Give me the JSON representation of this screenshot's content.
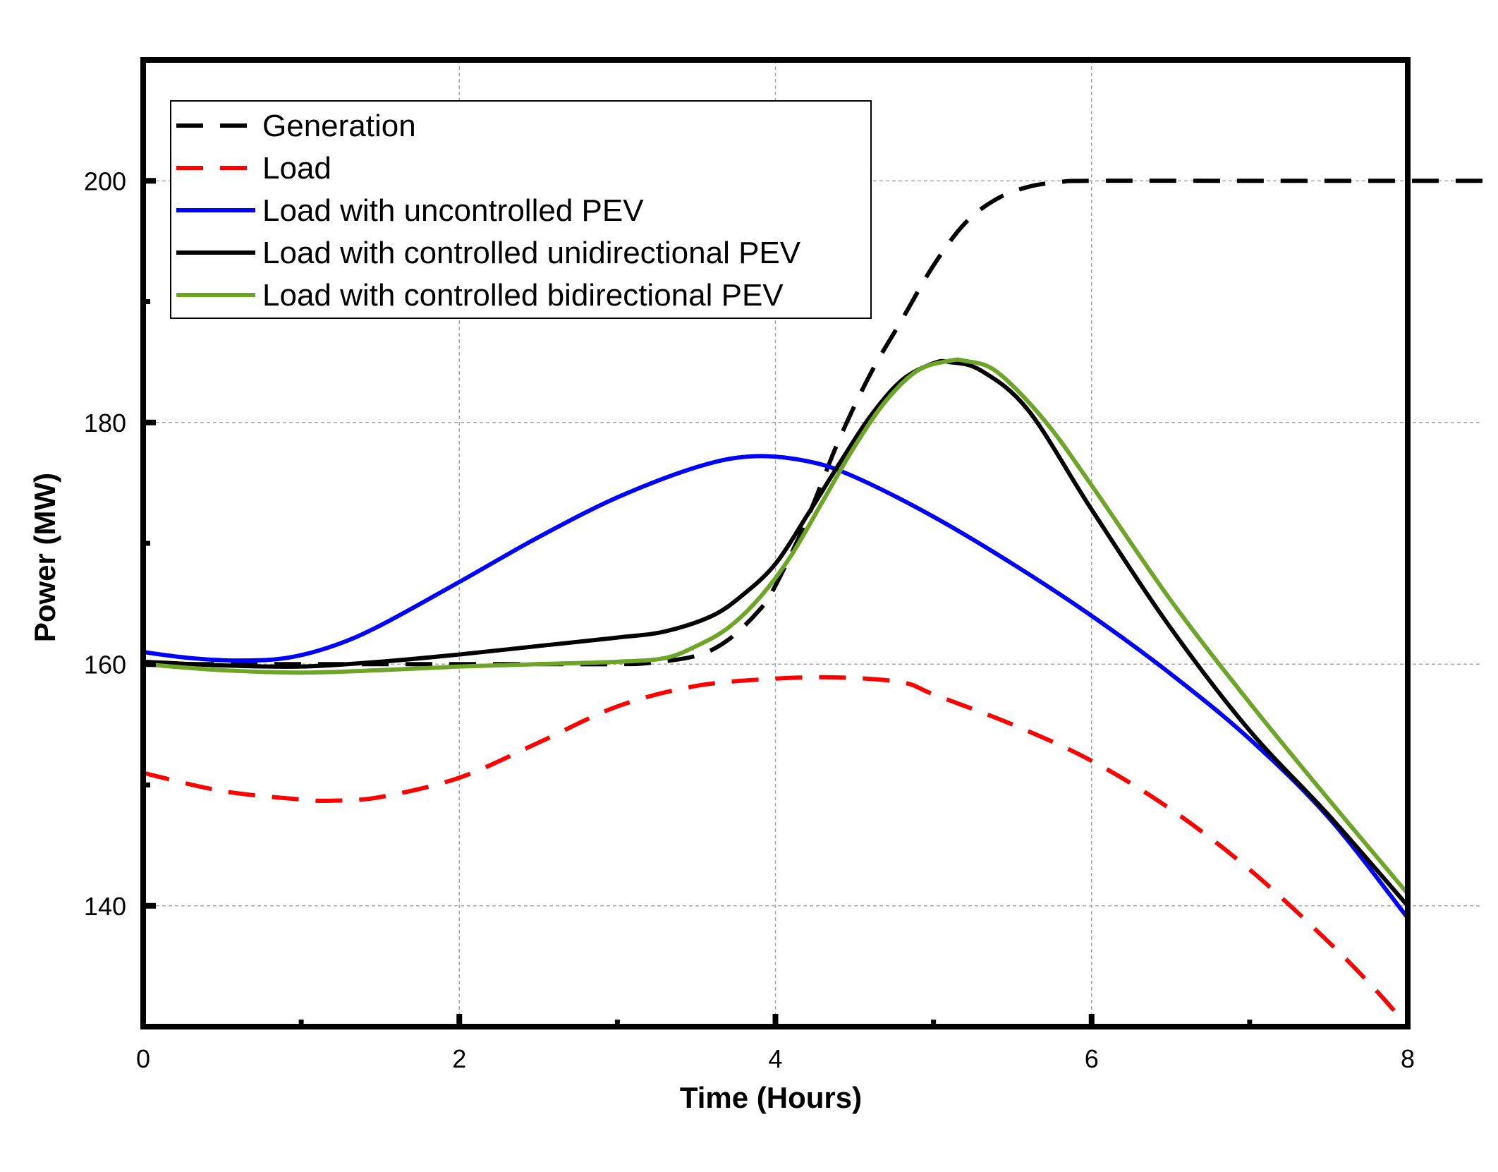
{
  "chart_data": {
    "type": "line",
    "title": "",
    "xlabel": "Time (Hours)",
    "ylabel": "Power (MW)",
    "xlim": [
      0,
      8
    ],
    "ylim": [
      130,
      210
    ],
    "xticks": [
      0,
      2,
      4,
      6,
      8
    ],
    "yticks": [
      140,
      160,
      180,
      200
    ],
    "x_minor_ticks": [
      1,
      3,
      5,
      7
    ],
    "y_minor_ticks": [
      150,
      170,
      190
    ],
    "grid": true,
    "legend_position": "top-left",
    "series": [
      {
        "name": "Generation",
        "color": "#000000",
        "style": "dashed",
        "x": [
          0,
          0.5,
          1,
          1.5,
          2,
          2.5,
          3,
          3.2,
          3.5,
          3.7,
          3.9,
          4.0,
          4.2,
          4.4,
          4.6,
          4.8,
          5.0,
          5.2,
          5.4,
          5.6,
          5.8,
          6.0,
          7.0,
          8.0,
          8.5
        ],
        "y": [
          160,
          160,
          160,
          160,
          160,
          160,
          160,
          160.1,
          160.7,
          162,
          164.5,
          166.5,
          172,
          178.5,
          184,
          188.5,
          193,
          196.5,
          198.5,
          199.5,
          199.9,
          200,
          200,
          200,
          200
        ]
      },
      {
        "name": "Load",
        "color": "#ff0000",
        "style": "dashed",
        "x": [
          0,
          0.5,
          1,
          1.2,
          1.5,
          2,
          2.5,
          3,
          3.5,
          4,
          4.4,
          4.8,
          5,
          5.5,
          6,
          6.5,
          7,
          7.5,
          7.8,
          8
        ],
        "y": [
          151,
          149.5,
          148.8,
          148.7,
          149,
          150.6,
          153.5,
          156.5,
          158.2,
          158.8,
          158.9,
          158.5,
          157.5,
          155,
          152,
          148,
          143,
          137,
          133,
          130
        ]
      },
      {
        "name": "Load with uncontrolled PEV",
        "color": "#0000ff",
        "style": "solid",
        "x": [
          0,
          0.3,
          0.6,
          0.9,
          1.2,
          1.5,
          2,
          2.5,
          3,
          3.5,
          3.85,
          4.2,
          4.5,
          5,
          5.5,
          6,
          6.5,
          7,
          7.5,
          8
        ],
        "y": [
          161,
          160.5,
          160.3,
          160.5,
          161.5,
          163.2,
          166.8,
          170.5,
          173.8,
          176.3,
          177.2,
          176.8,
          175.5,
          172.2,
          168.3,
          164,
          159.2,
          153.8,
          147.3,
          139
        ]
      },
      {
        "name": "Load with controlled unidirectional PEV",
        "color": "#000000",
        "style": "solid",
        "x": [
          0,
          0.5,
          1,
          1.5,
          2,
          2.5,
          3,
          3.3,
          3.6,
          3.8,
          4.0,
          4.2,
          4.4,
          4.6,
          4.8,
          5.0,
          5.1,
          5.3,
          5.6,
          6,
          6.5,
          7,
          7.5,
          8
        ],
        "y": [
          160.2,
          159.9,
          159.8,
          160.2,
          160.8,
          161.5,
          162.2,
          162.7,
          164,
          165.8,
          168.3,
          172.3,
          176.5,
          180.5,
          183.5,
          184.9,
          185,
          184.3,
          181,
          172.8,
          163,
          154.5,
          147.5,
          140
        ]
      },
      {
        "name": "Load with controlled bidirectional PEV",
        "color": "#6ea528",
        "style": "solid",
        "x": [
          0,
          0.5,
          1,
          1.5,
          2,
          2.5,
          3,
          3.3,
          3.5,
          3.7,
          3.9,
          4.1,
          4.3,
          4.5,
          4.7,
          4.9,
          5.1,
          5.2,
          5.4,
          5.7,
          6,
          6.5,
          7,
          7.5,
          8
        ],
        "y": [
          160,
          159.5,
          159.3,
          159.5,
          159.8,
          160,
          160.2,
          160.5,
          161.5,
          163,
          165.5,
          169,
          173.5,
          178,
          181.8,
          184.3,
          185.1,
          185.1,
          184.2,
          180.2,
          174.8,
          165.3,
          156.8,
          148.8,
          141
        ]
      }
    ]
  }
}
